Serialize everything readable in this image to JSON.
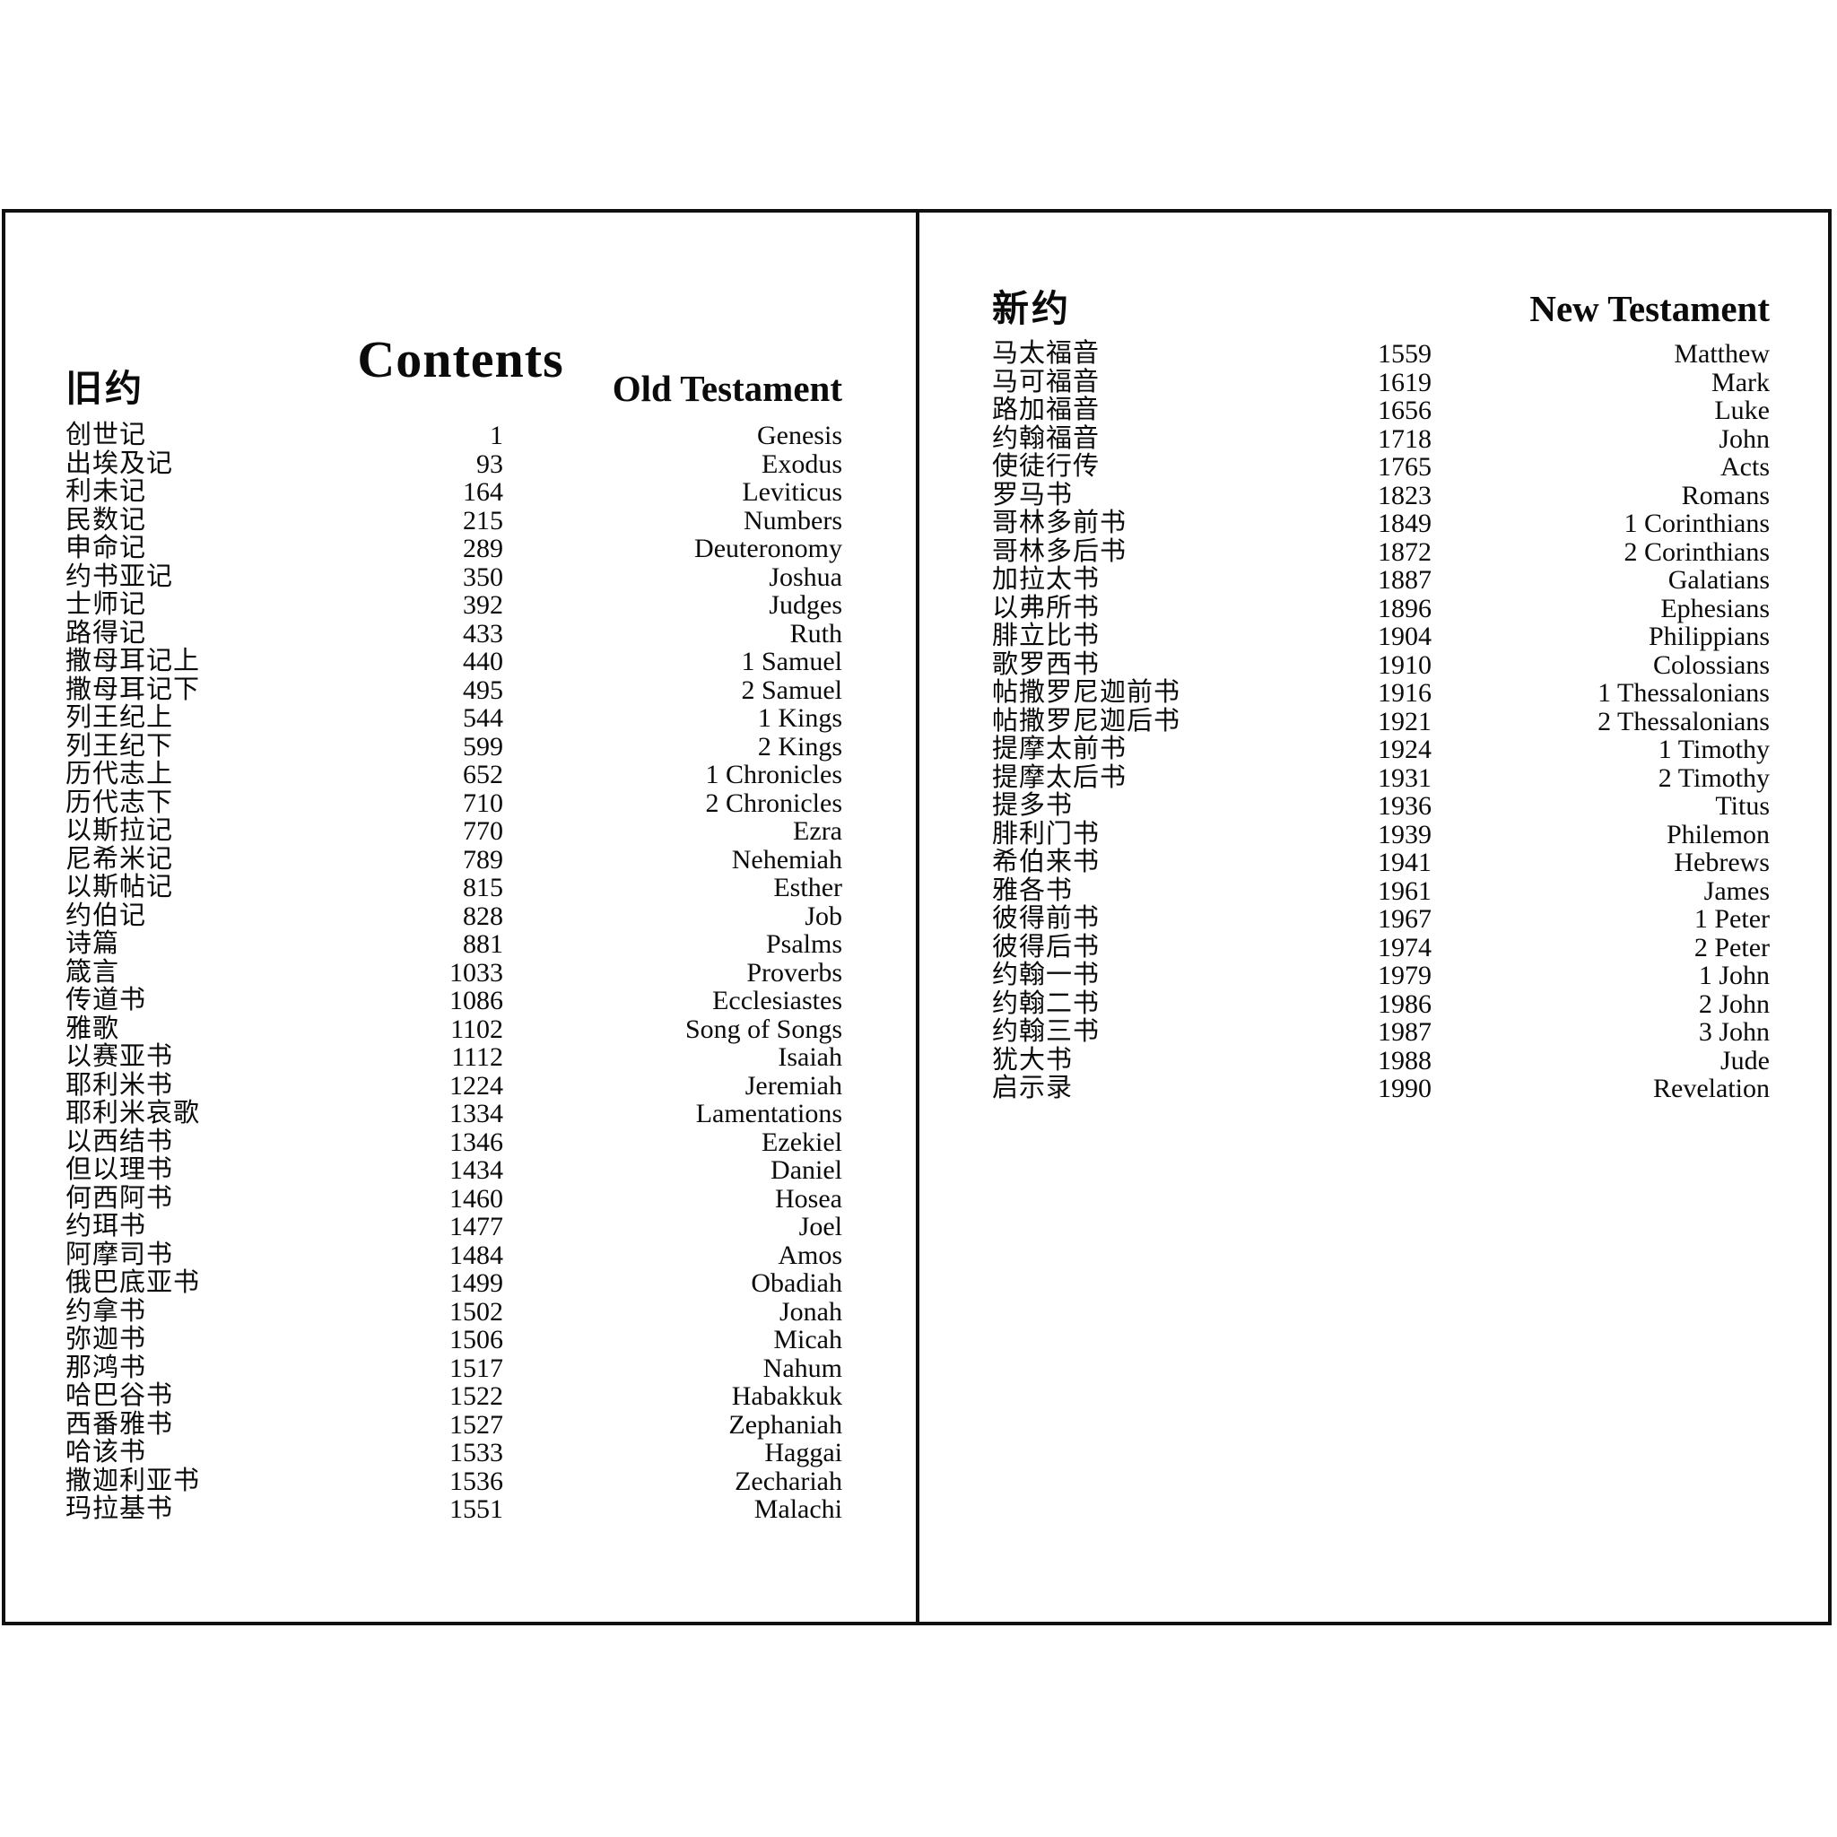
{
  "title": "Contents",
  "old_testament": {
    "zh_header": "旧约",
    "en_header": "Old Testament",
    "books": [
      {
        "zh": "创世记",
        "page": "1",
        "en": "Genesis"
      },
      {
        "zh": "出埃及记",
        "page": "93",
        "en": "Exodus"
      },
      {
        "zh": "利未记",
        "page": "164",
        "en": "Leviticus"
      },
      {
        "zh": "民数记",
        "page": "215",
        "en": "Numbers"
      },
      {
        "zh": "申命记",
        "page": "289",
        "en": "Deuteronomy"
      },
      {
        "zh": "约书亚记",
        "page": "350",
        "en": "Joshua"
      },
      {
        "zh": "士师记",
        "page": "392",
        "en": "Judges"
      },
      {
        "zh": "路得记",
        "page": "433",
        "en": "Ruth"
      },
      {
        "zh": "撒母耳记上",
        "page": "440",
        "en": "1 Samuel"
      },
      {
        "zh": "撒母耳记下",
        "page": "495",
        "en": "2 Samuel"
      },
      {
        "zh": "列王纪上",
        "page": "544",
        "en": "1 Kings"
      },
      {
        "zh": "列王纪下",
        "page": "599",
        "en": "2 Kings"
      },
      {
        "zh": "历代志上",
        "page": "652",
        "en": "1 Chronicles"
      },
      {
        "zh": "历代志下",
        "page": "710",
        "en": "2 Chronicles"
      },
      {
        "zh": "以斯拉记",
        "page": "770",
        "en": "Ezra"
      },
      {
        "zh": "尼希米记",
        "page": "789",
        "en": "Nehemiah"
      },
      {
        "zh": "以斯帖记",
        "page": "815",
        "en": "Esther"
      },
      {
        "zh": "约伯记",
        "page": "828",
        "en": "Job"
      },
      {
        "zh": "诗篇",
        "page": "881",
        "en": "Psalms"
      },
      {
        "zh": "箴言",
        "page": "1033",
        "en": "Proverbs"
      },
      {
        "zh": "传道书",
        "page": "1086",
        "en": "Ecclesiastes"
      },
      {
        "zh": "雅歌",
        "page": "1102",
        "en": "Song of Songs"
      },
      {
        "zh": "以赛亚书",
        "page": "1112",
        "en": "Isaiah"
      },
      {
        "zh": "耶利米书",
        "page": "1224",
        "en": "Jeremiah"
      },
      {
        "zh": "耶利米哀歌",
        "page": "1334",
        "en": "Lamentations"
      },
      {
        "zh": "以西结书",
        "page": "1346",
        "en": "Ezekiel"
      },
      {
        "zh": "但以理书",
        "page": "1434",
        "en": "Daniel"
      },
      {
        "zh": "何西阿书",
        "page": "1460",
        "en": "Hosea"
      },
      {
        "zh": "约珥书",
        "page": "1477",
        "en": "Joel"
      },
      {
        "zh": "阿摩司书",
        "page": "1484",
        "en": "Amos"
      },
      {
        "zh": "俄巴底亚书",
        "page": "1499",
        "en": "Obadiah"
      },
      {
        "zh": "约拿书",
        "page": "1502",
        "en": "Jonah"
      },
      {
        "zh": "弥迦书",
        "page": "1506",
        "en": "Micah"
      },
      {
        "zh": "那鸿书",
        "page": "1517",
        "en": "Nahum"
      },
      {
        "zh": "哈巴谷书",
        "page": "1522",
        "en": "Habakkuk"
      },
      {
        "zh": "西番雅书",
        "page": "1527",
        "en": "Zephaniah"
      },
      {
        "zh": "哈该书",
        "page": "1533",
        "en": "Haggai"
      },
      {
        "zh": "撒迦利亚书",
        "page": "1536",
        "en": "Zechariah"
      },
      {
        "zh": "玛拉基书",
        "page": "1551",
        "en": "Malachi"
      }
    ]
  },
  "new_testament": {
    "zh_header": "新约",
    "en_header": "New Testament",
    "books": [
      {
        "zh": "马太福音",
        "page": "1559",
        "en": "Matthew"
      },
      {
        "zh": "马可福音",
        "page": "1619",
        "en": "Mark"
      },
      {
        "zh": "路加福音",
        "page": "1656",
        "en": "Luke"
      },
      {
        "zh": "约翰福音",
        "page": "1718",
        "en": "John"
      },
      {
        "zh": "使徒行传",
        "page": "1765",
        "en": "Acts"
      },
      {
        "zh": "罗马书",
        "page": "1823",
        "en": "Romans"
      },
      {
        "zh": "哥林多前书",
        "page": "1849",
        "en": "1 Corinthians"
      },
      {
        "zh": "哥林多后书",
        "page": "1872",
        "en": "2 Corinthians"
      },
      {
        "zh": "加拉太书",
        "page": "1887",
        "en": "Galatians"
      },
      {
        "zh": "以弗所书",
        "page": "1896",
        "en": "Ephesians"
      },
      {
        "zh": "腓立比书",
        "page": "1904",
        "en": "Philippians"
      },
      {
        "zh": "歌罗西书",
        "page": "1910",
        "en": "Colossians"
      },
      {
        "zh": "帖撒罗尼迦前书",
        "page": "1916",
        "en": "1 Thessalonians"
      },
      {
        "zh": "帖撒罗尼迦后书",
        "page": "1921",
        "en": "2 Thessalonians"
      },
      {
        "zh": "提摩太前书",
        "page": "1924",
        "en": "1 Timothy"
      },
      {
        "zh": "提摩太后书",
        "page": "1931",
        "en": "2 Timothy"
      },
      {
        "zh": "提多书",
        "page": "1936",
        "en": "Titus"
      },
      {
        "zh": "腓利门书",
        "page": "1939",
        "en": "Philemon"
      },
      {
        "zh": "希伯来书",
        "page": "1941",
        "en": "Hebrews"
      },
      {
        "zh": "雅各书",
        "page": "1961",
        "en": "James"
      },
      {
        "zh": "彼得前书",
        "page": "1967",
        "en": "1 Peter"
      },
      {
        "zh": "彼得后书",
        "page": "1974",
        "en": "2 Peter"
      },
      {
        "zh": "约翰一书",
        "page": "1979",
        "en": "1 John"
      },
      {
        "zh": "约翰二书",
        "page": "1986",
        "en": "2 John"
      },
      {
        "zh": "约翰三书",
        "page": "1987",
        "en": "3 John"
      },
      {
        "zh": "犹大书",
        "page": "1988",
        "en": "Jude"
      },
      {
        "zh": "启示录",
        "page": "1990",
        "en": "Revelation"
      }
    ]
  },
  "colors": {
    "ink": "#0b0b0b",
    "paper": "#ffffff"
  }
}
